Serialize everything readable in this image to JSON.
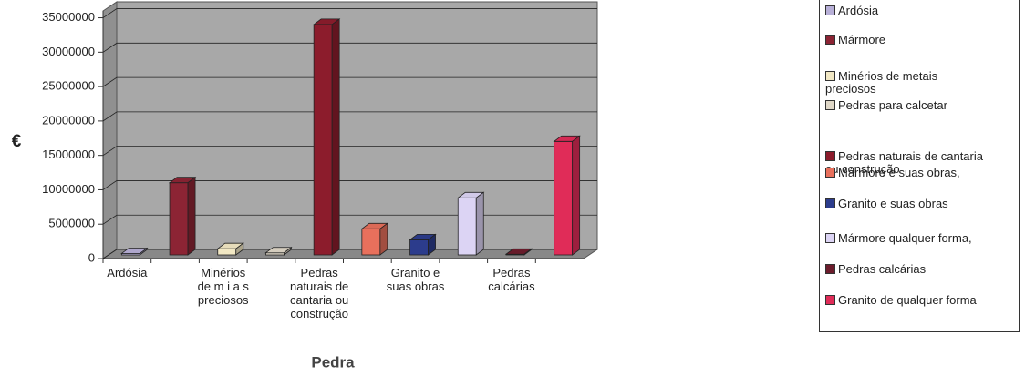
{
  "chart_data": {
    "type": "bar3d",
    "ylabel": "€",
    "xlabel": "Pedra",
    "categories": [
      "Ardósia",
      null,
      "Minérios\nde m i a s\npreciosos",
      null,
      "Pedras\nnaturais de\ncantaria ou\nconstrução",
      null,
      "Granito e\nsuas obras",
      null,
      "Pedras\ncalcárias",
      null
    ],
    "legend": [
      "Ardósia",
      "Mármore",
      "Minérios de metais\npreciosos",
      "Pedras para calcetar",
      "Pedras naturais de cantaria\nou construção",
      "Mármore e suas obras,",
      "Granito e suas obras",
      "Mármore qualquer forma,",
      "Pedras calcárias",
      "Granito de qualquer forma"
    ],
    "values": [
      200000,
      10500000,
      900000,
      300000,
      33500000,
      3800000,
      2200000,
      8300000,
      100000,
      16500000
    ],
    "colors": [
      "#b8b0d8",
      "#8c2434",
      "#f2e8c4",
      "#e0d8c8",
      "#8c1c2c",
      "#e8705c",
      "#2c3c8c",
      "#dcd4f4",
      "#6c1c2c",
      "#e02c58"
    ],
    "ylim": [
      0,
      36000000
    ],
    "yticks": [
      0,
      5000000,
      10000000,
      15000000,
      20000000,
      25000000,
      30000000,
      35000000
    ],
    "grid": true
  }
}
